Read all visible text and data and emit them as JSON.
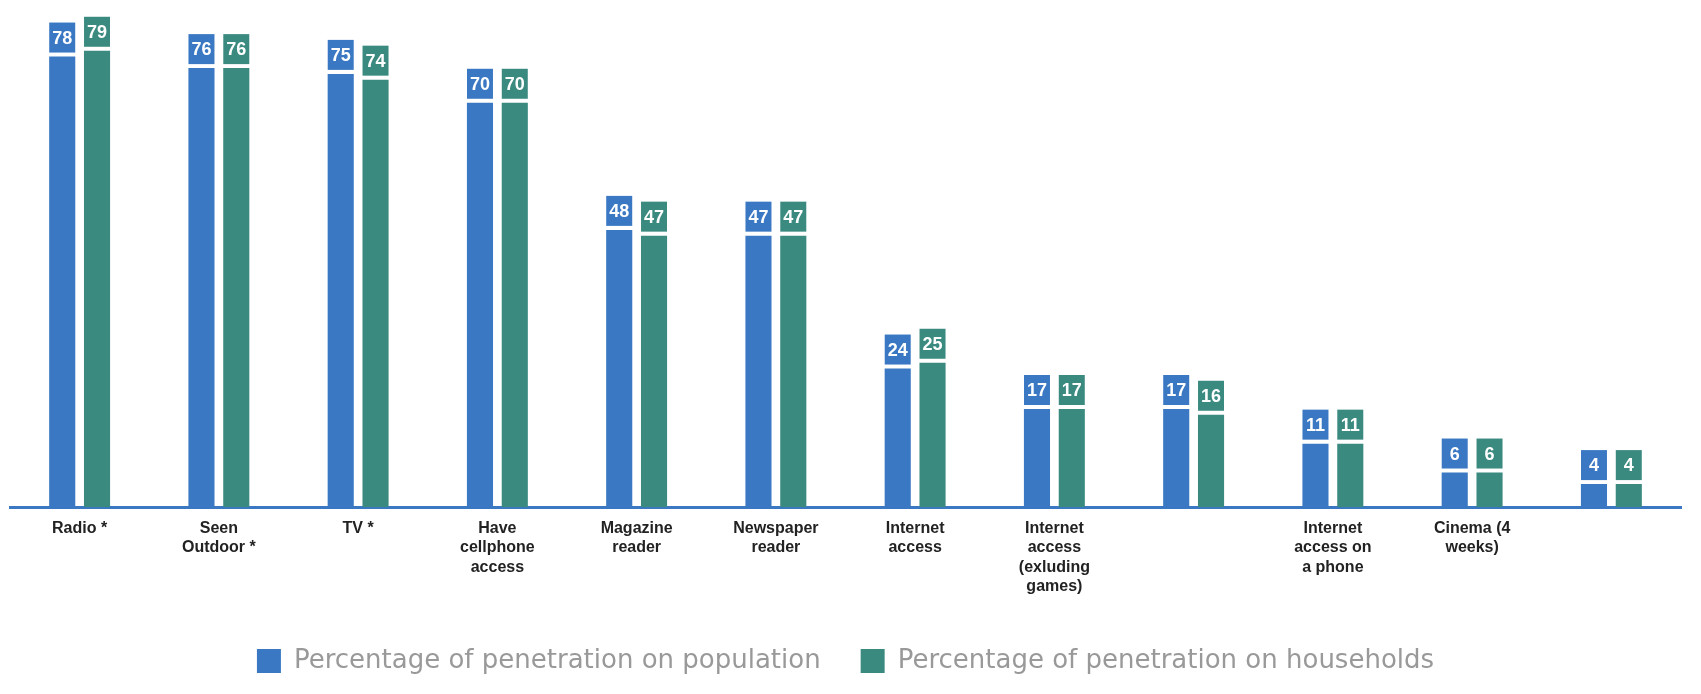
{
  "chart_data": {
    "type": "bar",
    "categories": [
      "Radio *",
      "Seen Outdoor *",
      "TV *",
      "Have cellphone access",
      "Magazine reader",
      "Newspaper reader",
      "Internet access",
      "Internet access (exluding games)",
      null,
      "Internet access on a phone",
      "Cinema (4 weeks)",
      null
    ],
    "series": [
      {
        "name": "Percentage of penetration on population",
        "color": "#3a78c3",
        "values": [
          78,
          76,
          75,
          70,
          48,
          47,
          24,
          17,
          17,
          11,
          6,
          4
        ]
      },
      {
        "name": "Percentage of penetration on households",
        "color": "#3a8a80",
        "values": [
          79,
          76,
          74,
          70,
          47,
          47,
          25,
          17,
          16,
          11,
          6,
          4
        ]
      }
    ],
    "tick_labels": "x",
    "data_labels": true,
    "grid": false,
    "legend": "bottom"
  }
}
